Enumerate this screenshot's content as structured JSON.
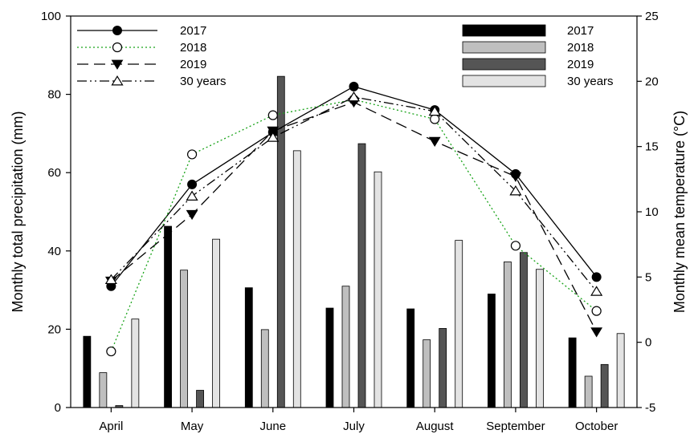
{
  "chart_data": {
    "type": "bar+line",
    "categories": [
      "April",
      "May",
      "June",
      "July",
      "August",
      "September",
      "October"
    ],
    "y_left": {
      "label": "Monthly total precipitation (mm)",
      "range": [
        0,
        100
      ],
      "ticks": [
        "0",
        "20",
        "40",
        "60",
        "80",
        "100"
      ]
    },
    "y_right": {
      "label": "Monthly mean temperature (°C)",
      "range": [
        -5,
        25
      ],
      "ticks": [
        "-5",
        "0",
        "5",
        "10",
        "15",
        "20",
        "25"
      ]
    },
    "bar_series": [
      {
        "name": "2017",
        "color": "#000000",
        "values": [
          18.2,
          46.3,
          30.6,
          25.4,
          25.2,
          29.0,
          17.8
        ]
      },
      {
        "name": "2018",
        "color": "#bfbfbf",
        "values": [
          8.9,
          35.1,
          19.9,
          31.0,
          17.3,
          37.2,
          8.0
        ]
      },
      {
        "name": "2019",
        "color": "#555555",
        "values": [
          0.5,
          4.4,
          84.6,
          67.4,
          20.2,
          39.6,
          11.0
        ]
      },
      {
        "name": "30 years",
        "color": "#e3e3e3",
        "values": [
          22.6,
          43.0,
          65.6,
          60.2,
          42.7,
          35.3,
          18.9
        ]
      }
    ],
    "line_series": [
      {
        "name": "2017",
        "values": [
          4.3,
          12.1,
          16.1,
          19.6,
          17.8,
          12.9,
          5.0
        ],
        "color": "#000000",
        "dash": "",
        "marker": "circle-filled"
      },
      {
        "name": "2018",
        "values": [
          -0.7,
          14.4,
          17.4,
          18.6,
          17.1,
          7.4,
          2.4
        ],
        "color": "#19a319",
        "dash": "2,3",
        "marker": "circle-open"
      },
      {
        "name": "2019",
        "values": [
          4.7,
          9.8,
          16.2,
          18.4,
          15.4,
          12.7,
          0.8
        ],
        "color": "#000000",
        "dash": "14,7",
        "marker": "triangle-down-filled"
      },
      {
        "name": "30 years",
        "values": [
          4.8,
          11.2,
          15.7,
          18.8,
          17.7,
          11.6,
          3.9
        ],
        "color": "#000000",
        "dash": "12,4,2,4,2,4",
        "marker": "triangle-up-open"
      }
    ],
    "grid": false
  }
}
